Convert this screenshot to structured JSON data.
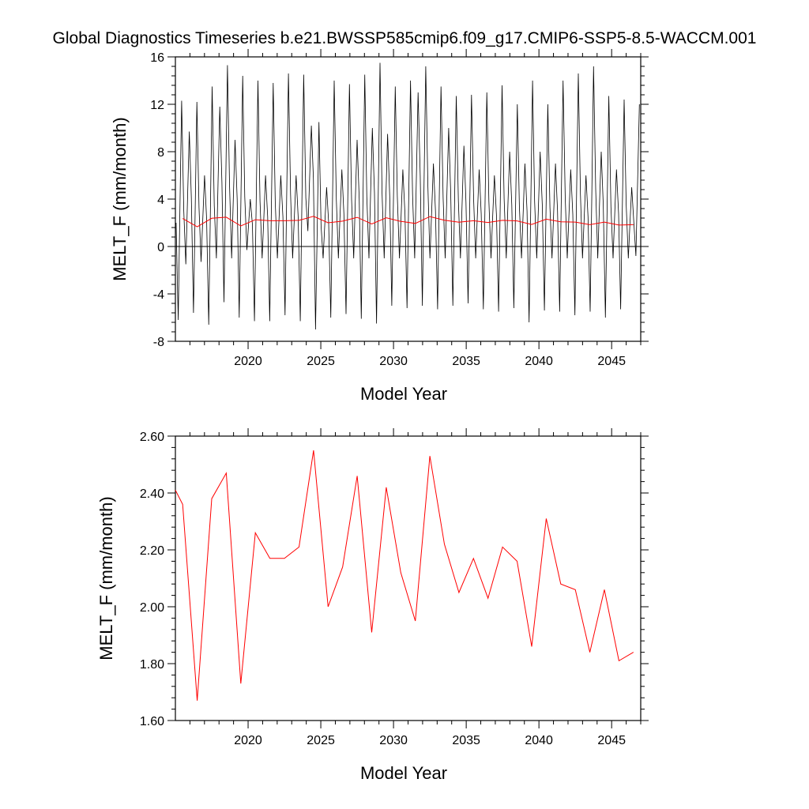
{
  "page_title": "Global Diagnostics Timeseries b.e21.BWSSP585cmip6.f09_g17.CMIP6-SSP5-8.5-WACCM.001",
  "colors": {
    "monthly": "#000000",
    "annual": "#ff0000",
    "axis": "#000000"
  },
  "chart_data": [
    {
      "type": "line",
      "title": "",
      "xlabel": "Model Year",
      "ylabel": "MELT_F (mm/month)",
      "xlim": [
        2015.0,
        2047.0
      ],
      "ylim": [
        -8,
        16
      ],
      "xticks": [
        2020,
        2025,
        2030,
        2035,
        2040,
        2045
      ],
      "yticks": [
        -8,
        -4,
        0,
        4,
        8,
        12,
        16
      ],
      "ytick_labels": [
        "-8",
        "-4",
        "0",
        "4",
        "8",
        "12",
        "16"
      ],
      "zero_line": true,
      "grid": false,
      "series": [
        {
          "color": "#000000",
          "peaks": [
            12.3,
            9.7,
            12.2,
            6.0,
            13.5,
            11.8,
            15.3,
            9.0,
            14.4,
            4.0,
            14.0,
            6.0,
            13.8,
            6.0,
            14.6,
            6.0,
            14.5,
            10.2,
            10.5,
            5.0,
            14.0,
            6.5,
            13.7,
            9.0,
            14.5,
            10.0,
            15.5,
            9.5,
            13.5,
            6.5,
            14.0,
            13.0,
            15.2,
            7.0,
            13.5,
            10.0,
            12.7,
            8.5,
            12.8,
            6.5,
            13.0,
            6.0,
            13.6,
            8.0,
            12.0,
            7.0,
            14.0,
            8.0,
            12.0,
            7.0,
            14.0,
            6.5,
            14.6,
            6.0,
            15.2,
            8.0,
            12.7,
            6.5,
            12.4,
            5.0,
            12.0
          ],
          "troughs": [
            -6.2,
            -1.5,
            -5.6,
            -1.3,
            -6.6,
            -1.0,
            -4.7,
            -1.0,
            -6.0,
            -0.3,
            -6.3,
            -1.0,
            -6.3,
            -1.0,
            -5.8,
            -1.0,
            -6.3,
            1.3,
            -7.0,
            -1.0,
            -6.0,
            -1.0,
            -5.7,
            -1.0,
            -6.1,
            -1.0,
            -6.5,
            -1.0,
            -5.0,
            -1.0,
            -5.2,
            -1.0,
            -5.0,
            -1.0,
            -5.3,
            -1.0,
            -5.0,
            -1.0,
            -4.8,
            -1.0,
            -5.3,
            -1.0,
            -5.5,
            -1.0,
            -5.2,
            -1.0,
            -6.4,
            -1.0,
            -5.4,
            -1.0,
            -5.5,
            -1.0,
            -5.8,
            -1.0,
            -5.5,
            -1.0,
            -6.0,
            -1.0,
            -5.3,
            -1.0,
            -0.8
          ]
        },
        {
          "color": "#ff0000",
          "x": [
            2015.5,
            2016.5,
            2017.5,
            2018.5,
            2019.5,
            2020.5,
            2021.5,
            2022.5,
            2023.5,
            2024.5,
            2025.5,
            2026.5,
            2027.5,
            2028.5,
            2029.5,
            2030.5,
            2031.5,
            2032.5,
            2033.5,
            2034.5,
            2035.5,
            2036.5,
            2037.5,
            2038.5,
            2039.5,
            2040.5,
            2041.5,
            2042.5,
            2043.5,
            2044.5,
            2045.5,
            2046.5
          ],
          "values": [
            2.36,
            1.67,
            2.38,
            2.47,
            1.73,
            2.26,
            2.17,
            2.17,
            2.21,
            2.55,
            2.0,
            2.14,
            2.46,
            1.91,
            2.42,
            2.12,
            1.95,
            2.53,
            2.22,
            2.05,
            2.17,
            2.03,
            2.21,
            2.16,
            1.86,
            2.31,
            2.08,
            2.06,
            1.84,
            2.06,
            1.81,
            1.84
          ]
        }
      ]
    },
    {
      "type": "line",
      "title": "",
      "xlabel": "Model Year",
      "ylabel": "MELT_F (mm/month)",
      "xlim": [
        2015.0,
        2047.0
      ],
      "ylim": [
        1.6,
        2.6
      ],
      "xticks": [
        2020,
        2025,
        2030,
        2035,
        2040,
        2045
      ],
      "yticks": [
        1.6,
        1.8,
        2.0,
        2.2,
        2.4,
        2.6
      ],
      "ytick_labels": [
        "1.60",
        "1.80",
        "2.00",
        "2.20",
        "2.40",
        "2.60"
      ],
      "grid": false,
      "series": [
        {
          "color": "#ff0000",
          "x": [
            2015.5,
            2016.5,
            2017.5,
            2018.5,
            2019.5,
            2020.5,
            2021.5,
            2022.5,
            2023.5,
            2024.5,
            2025.5,
            2026.5,
            2027.5,
            2028.5,
            2029.5,
            2030.5,
            2031.5,
            2032.5,
            2033.5,
            2034.5,
            2035.5,
            2036.5,
            2037.5,
            2038.5,
            2039.5,
            2040.5,
            2041.5,
            2042.5,
            2043.5,
            2044.5,
            2045.5,
            2046.5
          ],
          "values": [
            2.36,
            1.67,
            2.38,
            2.47,
            1.73,
            2.26,
            2.17,
            2.17,
            2.21,
            2.55,
            2.0,
            2.14,
            2.46,
            1.91,
            2.42,
            2.12,
            1.95,
            2.53,
            2.22,
            2.05,
            2.17,
            2.03,
            2.21,
            2.16,
            1.86,
            2.31,
            2.08,
            2.06,
            1.84,
            2.06,
            1.81,
            1.84
          ]
        }
      ]
    }
  ]
}
